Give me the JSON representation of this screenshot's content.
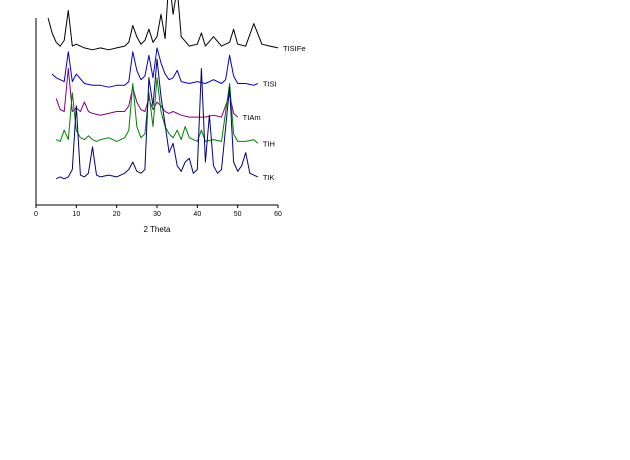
{
  "chart_data": {
    "type": "line",
    "xlabel": "2 Theta",
    "ylabel": "",
    "xlim": [
      0,
      60
    ],
    "xticks": [
      0,
      10,
      20,
      30,
      40,
      50,
      60
    ],
    "grid": false,
    "series": [
      {
        "name": "TISIFe",
        "color": "#000000",
        "baseline": 0.82,
        "x": [
          3,
          4,
          5,
          6,
          7,
          8,
          9,
          10,
          12,
          14,
          16,
          18,
          20,
          22,
          23,
          24,
          25,
          26,
          27,
          28,
          29,
          30,
          31,
          32,
          33,
          34,
          35,
          36,
          38,
          40,
          41,
          42,
          44,
          46,
          48,
          49,
          50,
          52,
          54,
          56,
          58,
          60
        ],
        "y": [
          0.18,
          0.1,
          0.05,
          0.03,
          0.06,
          0.22,
          0.03,
          0.04,
          0.02,
          0.01,
          0.02,
          0.01,
          0.02,
          0.03,
          0.05,
          0.14,
          0.08,
          0.04,
          0.06,
          0.12,
          0.05,
          0.08,
          0.2,
          0.07,
          0.4,
          0.2,
          0.34,
          0.08,
          0.03,
          0.04,
          0.1,
          0.03,
          0.08,
          0.03,
          0.05,
          0.12,
          0.04,
          0.03,
          0.15,
          0.04,
          0.03,
          0.02
        ]
      },
      {
        "name": "TISI",
        "color": "#0000cc",
        "baseline": 0.62,
        "x": [
          4,
          5,
          6,
          7,
          8,
          9,
          10,
          12,
          14,
          16,
          18,
          20,
          22,
          23,
          24,
          25,
          26,
          27,
          28,
          29,
          30,
          31,
          32,
          33,
          34,
          35,
          36,
          38,
          40,
          42,
          44,
          46,
          47,
          48,
          49,
          50,
          52,
          54,
          55
        ],
        "y": [
          0.08,
          0.06,
          0.05,
          0.04,
          0.2,
          0.04,
          0.08,
          0.03,
          0.02,
          0.02,
          0.01,
          0.02,
          0.02,
          0.04,
          0.2,
          0.1,
          0.05,
          0.07,
          0.18,
          0.06,
          0.22,
          0.14,
          0.08,
          0.05,
          0.06,
          0.1,
          0.04,
          0.03,
          0.04,
          0.03,
          0.05,
          0.03,
          0.05,
          0.18,
          0.07,
          0.03,
          0.03,
          0.02,
          0.03
        ]
      },
      {
        "name": "TIAm",
        "color": "#800080",
        "baseline": 0.45,
        "x": [
          5,
          6,
          7,
          8,
          9,
          10,
          11,
          12,
          13,
          14,
          16,
          18,
          20,
          22,
          23,
          24,
          25,
          26,
          27,
          28,
          29,
          30,
          31,
          32,
          33,
          34,
          36,
          38,
          40,
          42,
          44,
          46,
          48,
          49,
          50
        ],
        "y": [
          0.12,
          0.06,
          0.05,
          0.28,
          0.05,
          0.07,
          0.05,
          0.1,
          0.05,
          0.04,
          0.03,
          0.04,
          0.05,
          0.05,
          0.08,
          0.18,
          0.1,
          0.06,
          0.05,
          0.12,
          0.06,
          0.1,
          0.08,
          0.05,
          0.04,
          0.05,
          0.03,
          0.02,
          0.02,
          0.02,
          0.03,
          0.02,
          0.14,
          0.04,
          0.02
        ]
      },
      {
        "name": "TIH",
        "color": "#008000",
        "baseline": 0.3,
        "x": [
          5,
          6,
          7,
          8,
          9,
          10,
          11,
          12,
          13,
          14,
          15,
          16,
          18,
          20,
          22,
          23,
          24,
          25,
          26,
          27,
          28,
          29,
          30,
          31,
          32,
          33,
          34,
          35,
          36,
          37,
          38,
          40,
          41,
          42,
          44,
          46,
          48,
          49,
          50,
          52,
          54,
          55
        ],
        "y": [
          0.05,
          0.04,
          0.1,
          0.05,
          0.3,
          0.1,
          0.06,
          0.05,
          0.07,
          0.05,
          0.04,
          0.05,
          0.06,
          0.04,
          0.06,
          0.1,
          0.35,
          0.12,
          0.06,
          0.08,
          0.3,
          0.12,
          0.38,
          0.2,
          0.12,
          0.08,
          0.06,
          0.1,
          0.05,
          0.12,
          0.06,
          0.04,
          0.1,
          0.04,
          0.05,
          0.04,
          0.35,
          0.08,
          0.04,
          0.04,
          0.05,
          0.03
        ]
      },
      {
        "name": "TIK",
        "color": "#000080",
        "baseline": 0.13,
        "x": [
          5,
          6,
          7,
          8,
          9,
          10,
          11,
          12,
          13,
          14,
          15,
          16,
          18,
          20,
          22,
          23,
          24,
          25,
          26,
          27,
          28,
          29,
          30,
          31,
          32,
          33,
          34,
          35,
          36,
          37,
          38,
          39,
          40,
          41,
          42,
          43,
          44,
          45,
          46,
          48,
          49,
          50,
          51,
          52,
          53,
          54,
          55
        ],
        "y": [
          0.01,
          0.02,
          0.01,
          0.02,
          0.06,
          0.4,
          0.03,
          0.02,
          0.04,
          0.18,
          0.03,
          0.02,
          0.03,
          0.02,
          0.04,
          0.06,
          0.1,
          0.05,
          0.04,
          0.06,
          0.55,
          0.4,
          0.65,
          0.45,
          0.3,
          0.15,
          0.2,
          0.08,
          0.05,
          0.1,
          0.12,
          0.04,
          0.06,
          0.6,
          0.1,
          0.35,
          0.08,
          0.04,
          0.06,
          0.5,
          0.1,
          0.05,
          0.08,
          0.15,
          0.04,
          0.03,
          0.02
        ]
      }
    ]
  }
}
